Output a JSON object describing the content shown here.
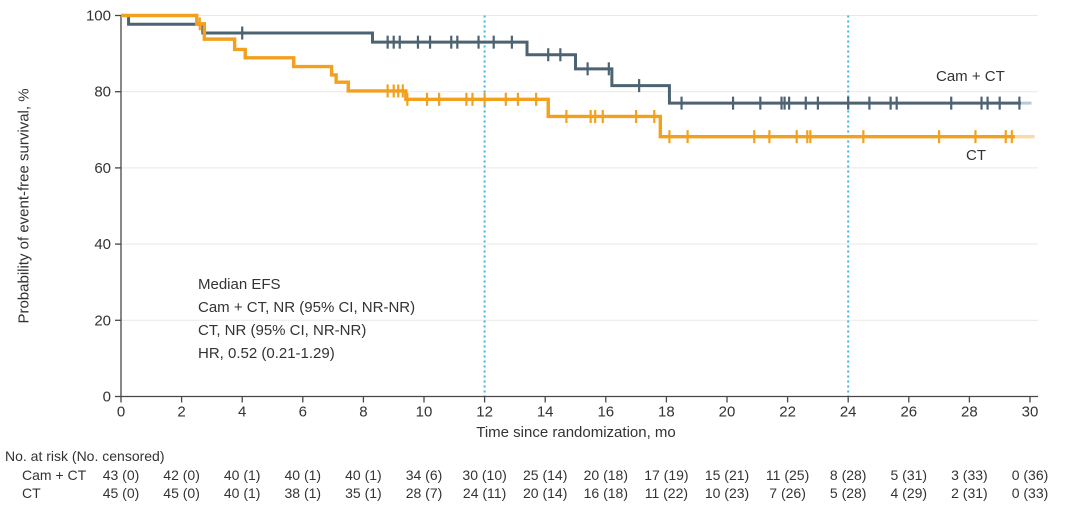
{
  "chart_data": {
    "type": "line",
    "subtype": "kaplan_meier_step",
    "title": "",
    "xlabel": "Time since randomization, mo",
    "ylabel": "Probability of event-free survival, %",
    "xlim": [
      0,
      30
    ],
    "ylim": [
      0,
      100
    ],
    "xticks": [
      0,
      2,
      4,
      6,
      8,
      10,
      12,
      14,
      16,
      18,
      20,
      22,
      24,
      26,
      28,
      30
    ],
    "yticks": [
      0,
      20,
      40,
      60,
      80,
      100
    ],
    "grid": "horizontal",
    "legend_position": "curve-end-labels",
    "reference_lines_x": [
      12,
      24
    ],
    "colors": {
      "grid": "#e9e9e9",
      "axis": "#474747",
      "reference": "#3cb5e6",
      "text": "#333333"
    },
    "series": [
      {
        "id": "cam-ct",
        "name": "Cam + CT",
        "color": "#4c6372",
        "fade_color": "#bcc8d0",
        "width": 3,
        "steps": [
          [
            0,
            100
          ],
          [
            0.25,
            97.7
          ],
          [
            2.7,
            95.4
          ],
          [
            8.3,
            93.0
          ],
          [
            13.4,
            89.7
          ],
          [
            15.0,
            86.0
          ],
          [
            16.2,
            81.6
          ],
          [
            18.1,
            77.0
          ]
        ],
        "solid_end": 29.7,
        "fade_end": 30.05,
        "censors": [
          4.0,
          8.8,
          9.0,
          9.2,
          9.8,
          10.2,
          10.9,
          11.1,
          11.8,
          12.3,
          12.9,
          14.1,
          14.5,
          15.4,
          16.1,
          17.1,
          18.5,
          20.2,
          21.1,
          21.8,
          21.9,
          22.05,
          22.6,
          23.0,
          24.0,
          24.7,
          25.4,
          25.6,
          27.4,
          28.4,
          28.6,
          29.0,
          29.65
        ]
      },
      {
        "id": "ct",
        "name": "CT",
        "color": "#f2a01d",
        "fade_color": "#fad9a2",
        "width": 3.4,
        "steps": [
          [
            0,
            100
          ],
          [
            2.5,
            97.8
          ],
          [
            2.75,
            93.8
          ],
          [
            3.75,
            91.1
          ],
          [
            4.1,
            88.9
          ],
          [
            5.7,
            86.6
          ],
          [
            6.95,
            84.4
          ],
          [
            7.1,
            82.5
          ],
          [
            7.5,
            80.2
          ],
          [
            9.4,
            78.0
          ],
          [
            14.1,
            73.5
          ],
          [
            17.8,
            68.2
          ]
        ],
        "solid_end": 29.5,
        "fade_end": 30.15,
        "censors": [
          2.6,
          8.8,
          9.0,
          9.15,
          9.3,
          9.45,
          10.1,
          10.5,
          11.4,
          11.6,
          12.0,
          12.7,
          13.1,
          13.7,
          14.7,
          15.5,
          15.65,
          15.9,
          17.0,
          17.6,
          18.1,
          18.7,
          20.9,
          21.4,
          22.3,
          22.65,
          22.75,
          24.5,
          27.0,
          28.2,
          29.2,
          29.4
        ]
      }
    ],
    "annotation": {
      "lines": [
        "Median EFS",
        "Cam + CT, NR (95% CI, NR-NR)",
        "CT, NR (95% CI, NR-NR)",
        "HR, 0.52 (0.21-1.29)"
      ]
    },
    "risk_table": {
      "header": "No. at risk (No. censored)",
      "times": [
        0,
        2,
        4,
        6,
        8,
        10,
        12,
        14,
        16,
        18,
        20,
        22,
        24,
        26,
        28,
        30
      ],
      "rows": [
        {
          "label": "Cam + CT",
          "values": [
            "43 (0)",
            "42 (0)",
            "40 (1)",
            "40 (1)",
            "40 (1)",
            "34 (6)",
            "30 (10)",
            "25 (14)",
            "20 (18)",
            "17 (19)",
            "15 (21)",
            "11 (25)",
            "8 (28)",
            "5 (31)",
            "3 (33)",
            "0 (36)"
          ]
        },
        {
          "label": "CT",
          "values": [
            "45 (0)",
            "45 (0)",
            "40 (1)",
            "38 (1)",
            "35 (1)",
            "28 (7)",
            "24 (11)",
            "20 (14)",
            "16 (18)",
            "11 (22)",
            "10 (23)",
            "7 (26)",
            "5 (28)",
            "4 (29)",
            "2 (31)",
            "0 (33)"
          ]
        }
      ]
    }
  }
}
